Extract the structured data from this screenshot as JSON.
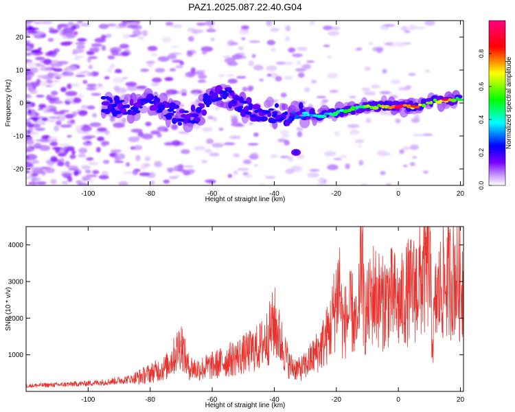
{
  "title": "PAZ1.2025.087.22.40.G04",
  "colors": {
    "signal": "#e8322d",
    "background": "#ffffff",
    "axis": "#000000"
  },
  "chart_data": [
    {
      "type": "heatmap",
      "title": "PAZ1.2025.087.22.40.G04",
      "xlabel": "Height of straight line (km)",
      "ylabel": "Frequency (Hz)",
      "xlim": [
        -120,
        21
      ],
      "ylim": [
        -25,
        25
      ],
      "x_ticks": [
        -100,
        -80,
        -60,
        -40,
        -20,
        0,
        20
      ],
      "y_ticks": [
        -20,
        -10,
        0,
        10,
        20
      ],
      "x_tick_labels": [
        "-100",
        "-80",
        "-60",
        "-40",
        "-20",
        "0",
        "20"
      ],
      "y_tick_labels": [
        "-20",
        "-10",
        "0",
        "10",
        "20"
      ],
      "colorbar": {
        "label": "Normalized spectral amplitude",
        "range": [
          0,
          1
        ],
        "ticks": [
          0.0,
          0.2,
          0.4,
          0.6,
          0.8
        ],
        "tick_labels": [
          "0.0",
          "0.2",
          "0.4",
          "0.6",
          "0.8"
        ],
        "colormap": [
          "#ffffff",
          "#7a00ff",
          "#0000ff",
          "#00ffff",
          "#00ff00",
          "#ffff00",
          "#ff0000",
          "#ff0080"
        ]
      },
      "ridge": [
        {
          "x": -95,
          "f": 0,
          "amp": 0.13
        },
        {
          "x": -90,
          "f": -1,
          "amp": 0.15
        },
        {
          "x": -85,
          "f": -1.5,
          "amp": 0.17
        },
        {
          "x": -80,
          "f": 1,
          "amp": 0.18
        },
        {
          "x": -75,
          "f": -2,
          "amp": 0.2
        },
        {
          "x": -70,
          "f": -4,
          "amp": 0.22
        },
        {
          "x": -65,
          "f": -4,
          "amp": 0.15
        },
        {
          "x": -60,
          "f": 3,
          "amp": 0.2
        },
        {
          "x": -55,
          "f": 2,
          "amp": 0.24
        },
        {
          "x": -50,
          "f": -1,
          "amp": 0.22
        },
        {
          "x": -45,
          "f": -3,
          "amp": 0.22
        },
        {
          "x": -40,
          "f": -3,
          "amp": 0.25
        },
        {
          "x": -35,
          "f": -4,
          "amp": 0.3
        },
        {
          "x": -30,
          "f": -3,
          "amp": 0.38
        },
        {
          "x": -25,
          "f": -4,
          "amp": 0.42
        },
        {
          "x": -20,
          "f": -3,
          "amp": 0.48
        },
        {
          "x": -15,
          "f": -2,
          "amp": 0.55
        },
        {
          "x": -10,
          "f": -1,
          "amp": 0.62
        },
        {
          "x": -5,
          "f": -1,
          "amp": 0.72
        },
        {
          "x": 0,
          "f": -1,
          "amp": 0.95
        },
        {
          "x": 5,
          "f": -1,
          "amp": 0.82
        },
        {
          "x": 10,
          "f": 0,
          "amp": 0.6
        },
        {
          "x": 15,
          "f": 1,
          "amp": 0.92
        },
        {
          "x": 20,
          "f": 1,
          "amp": 0.5
        }
      ]
    },
    {
      "type": "line",
      "xlabel": "Height of straight line (km)",
      "ylabel": "SNR (10 * v/v)",
      "xlim": [
        -120,
        21
      ],
      "ylim": [
        0,
        4500
      ],
      "x_ticks": [
        -100,
        -80,
        -60,
        -40,
        -20,
        0,
        20
      ],
      "y_ticks": [
        1000,
        2000,
        3000,
        4000
      ],
      "x_tick_labels": [
        "-100",
        "-80",
        "-60",
        "-40",
        "-20",
        "0",
        "20"
      ],
      "y_tick_labels": [
        "1000",
        "2000",
        "3000",
        "4000"
      ],
      "series": [
        {
          "color": "#e8322d",
          "x": [
            -120,
            -115,
            -110,
            -105,
            -100,
            -95,
            -90,
            -85,
            -80,
            -75,
            -72,
            -70,
            -68,
            -65,
            -60,
            -55,
            -50,
            -45,
            -42,
            -40,
            -38,
            -35,
            -32,
            -30,
            -28,
            -25,
            -22,
            -20,
            -19,
            -18,
            -15,
            -13,
            -12,
            -11,
            -10,
            -8,
            -5,
            -3,
            -1,
            0,
            3,
            5,
            8,
            10,
            11,
            12,
            14,
            16,
            18,
            20,
            21
          ],
          "y": [
            150,
            170,
            180,
            200,
            220,
            250,
            300,
            350,
            500,
            650,
            1000,
            1350,
            700,
            600,
            700,
            850,
            1000,
            1200,
            1500,
            1900,
            1400,
            700,
            600,
            700,
            900,
            1200,
            1700,
            2500,
            3000,
            1800,
            2200,
            1500,
            4200,
            2000,
            2200,
            2700,
            2400,
            2600,
            2500,
            2300,
            2700,
            2800,
            3100,
            3600,
            1300,
            2400,
            2900,
            3000,
            3200,
            2900,
            3000
          ]
        }
      ]
    }
  ]
}
